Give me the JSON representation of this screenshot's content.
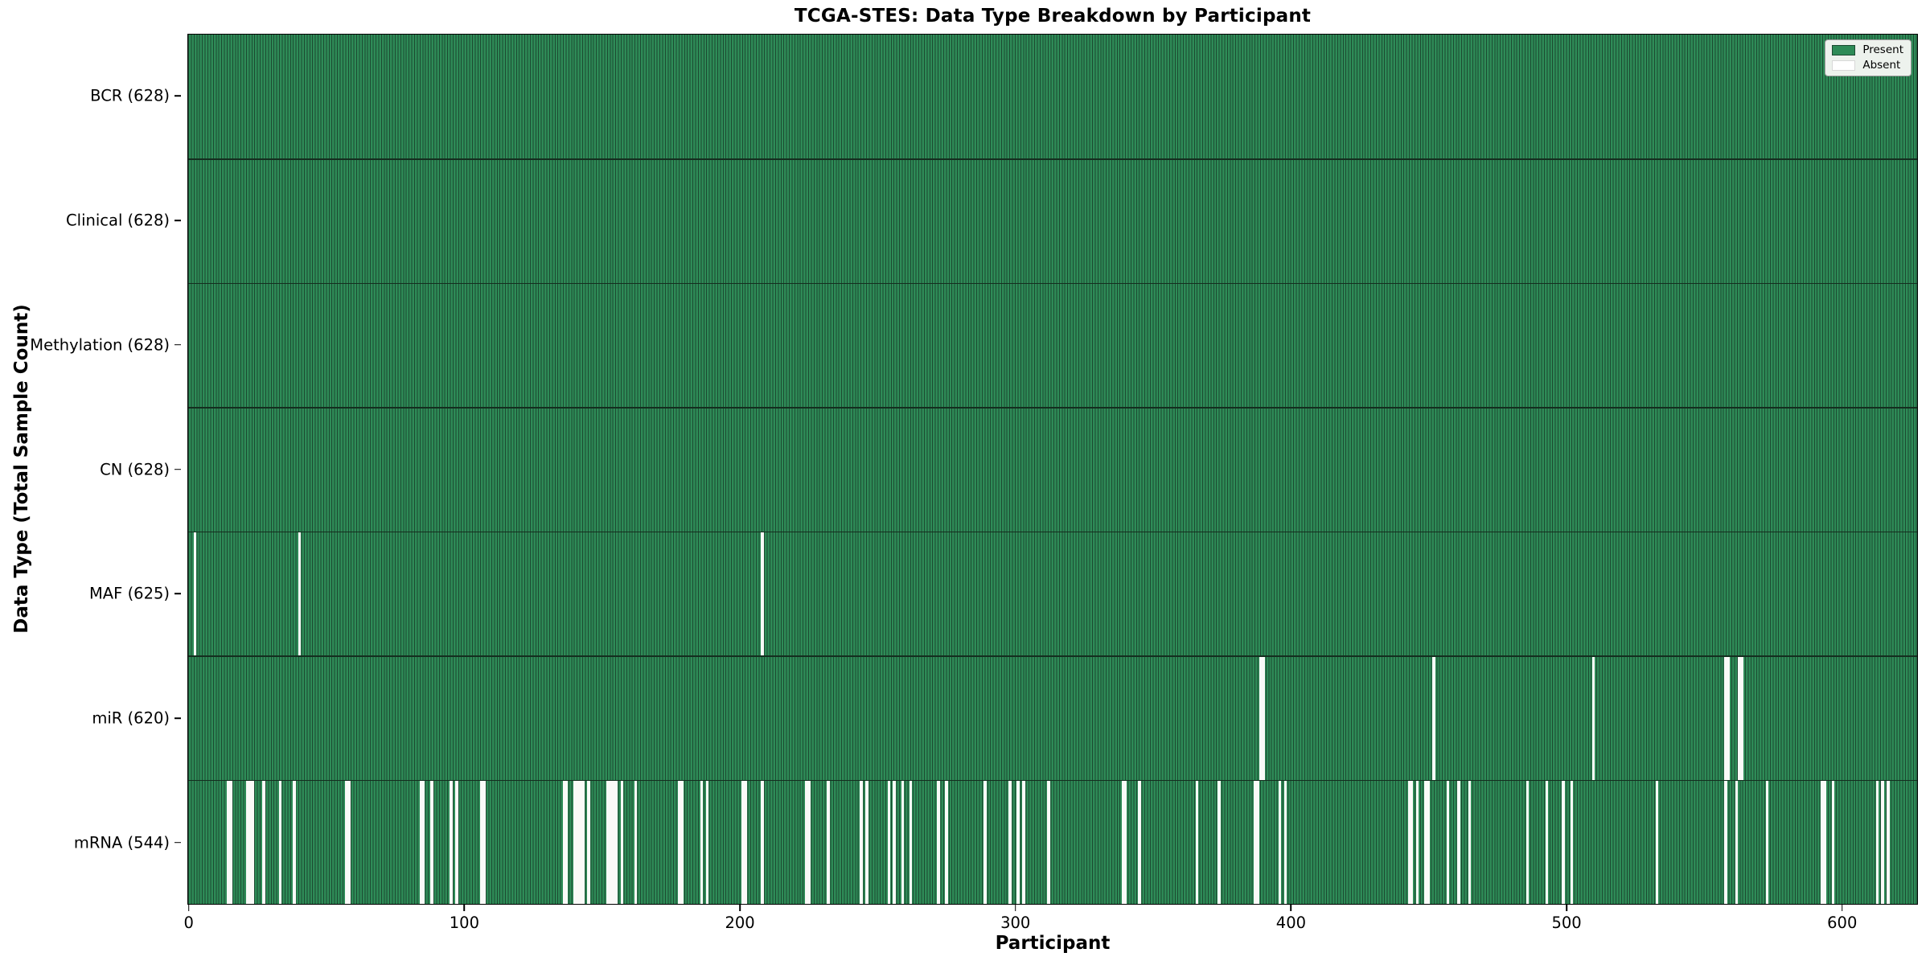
{
  "title": "TCGA-STES: Data Type Breakdown by Participant",
  "x_axis": {
    "label": "Participant"
  },
  "y_axis": {
    "label": "Data Type (Total Sample Count)"
  },
  "legend": {
    "present_label": "Present",
    "absent_label": "Absent",
    "position": "upper right"
  },
  "colors": {
    "present": "#2e8b57",
    "bar_edge": "#1c4a31",
    "absent": "#fafaf8",
    "row_separator": "#142e1f",
    "frame": "#000000",
    "legend_bg": "#edf2ed",
    "legend_border": "#9a9a9a"
  },
  "chart_data": {
    "type": "heatmap",
    "title": "TCGA-STES: Data Type Breakdown by Participant",
    "xlabel": "Participant",
    "ylabel": "Data Type (Total Sample Count)",
    "legend_entries": [
      "Present",
      "Absent"
    ],
    "legend_position": "upper right",
    "grid": false,
    "n_participants": 628,
    "x_range": [
      0,
      628
    ],
    "x_ticks": [
      0,
      100,
      200,
      300,
      400,
      500,
      600
    ],
    "rows": [
      {
        "label": "BCR (628)",
        "data_type": "BCR",
        "present_count": 628,
        "absent_count": 0,
        "absent_participants": []
      },
      {
        "label": "Clinical (628)",
        "data_type": "Clinical",
        "present_count": 628,
        "absent_count": 0,
        "absent_participants": []
      },
      {
        "label": "Methylation (628)",
        "data_type": "Methylation",
        "present_count": 628,
        "absent_count": 0,
        "absent_participants": []
      },
      {
        "label": "CN (628)",
        "data_type": "CN",
        "present_count": 628,
        "absent_count": 0,
        "absent_participants": []
      },
      {
        "label": "MAF (625)",
        "data_type": "MAF",
        "present_count": 625,
        "absent_count": 3,
        "absent_participants": [
          2,
          40,
          208
        ]
      },
      {
        "label": "miR (620)",
        "data_type": "miR",
        "present_count": 620,
        "absent_count": 8,
        "absent_participants": [
          389,
          390,
          452,
          510,
          558,
          559,
          563,
          564
        ]
      },
      {
        "label": "mRNA (544)",
        "data_type": "mRNA",
        "present_count": 544,
        "absent_count": 84,
        "absent_participants": [
          14,
          15,
          21,
          22,
          23,
          27,
          33,
          38,
          57,
          58,
          84,
          85,
          88,
          95,
          97,
          106,
          107,
          136,
          137,
          140,
          141,
          142,
          143,
          145,
          152,
          153,
          154,
          155,
          157,
          162,
          178,
          179,
          186,
          188,
          201,
          202,
          208,
          224,
          225,
          232,
          244,
          246,
          254,
          256,
          259,
          262,
          272,
          275,
          289,
          298,
          301,
          303,
          312,
          339,
          340,
          345,
          366,
          374,
          387,
          388,
          396,
          398,
          443,
          444,
          446,
          449,
          450,
          457,
          461,
          465,
          486,
          493,
          499,
          502,
          533,
          558,
          562,
          573,
          593,
          594,
          597,
          613,
          615,
          617
        ]
      }
    ]
  }
}
